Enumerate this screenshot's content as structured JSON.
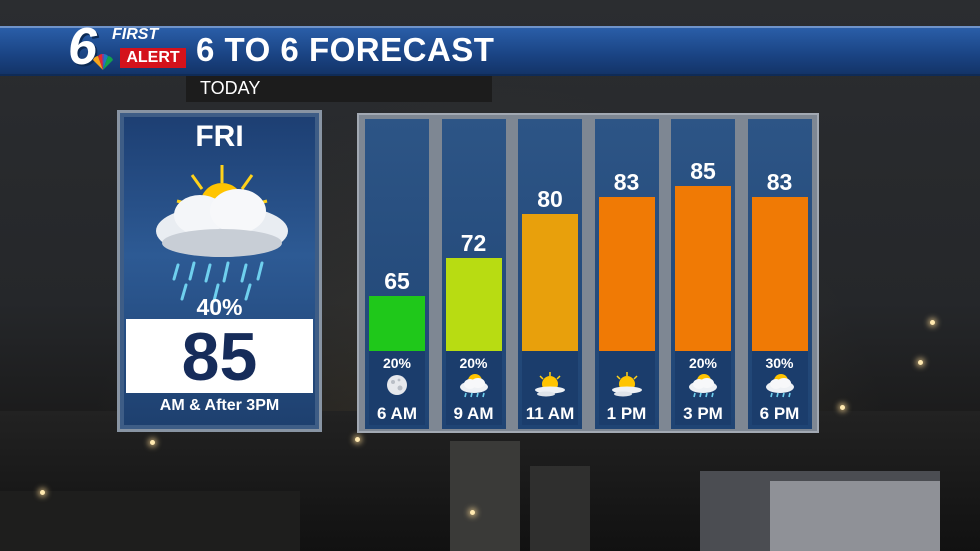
{
  "header": {
    "logo_number": "6",
    "logo_first": "FIRST",
    "logo_alert": "ALERT",
    "title": "6 TO 6 FORECAST",
    "subtitle": "TODAY"
  },
  "day": {
    "label": "FRI",
    "icon": "sun-cloud-rain-icon",
    "precip": "40%",
    "temp": "85",
    "note": "AM & After 3PM"
  },
  "hourly": [
    {
      "time": "6 AM",
      "temp": "65",
      "value": 65,
      "precip": "20%",
      "icon": "moon-icon",
      "color": "#1fc81a"
    },
    {
      "time": "9 AM",
      "temp": "72",
      "value": 72,
      "precip": "20%",
      "icon": "sun-cloud-rain-icon",
      "color": "#b8dc12"
    },
    {
      "time": "11 AM",
      "temp": "80",
      "value": 80,
      "precip": "",
      "icon": "partly-sunny-icon",
      "color": "#e8a00c"
    },
    {
      "time": "1 PM",
      "temp": "83",
      "value": 83,
      "precip": "",
      "icon": "partly-sunny-icon",
      "color": "#f07a05"
    },
    {
      "time": "3 PM",
      "temp": "85",
      "value": 85,
      "precip": "20%",
      "icon": "sun-cloud-rain-icon",
      "color": "#f07a05"
    },
    {
      "time": "6 PM",
      "temp": "83",
      "value": 83,
      "precip": "30%",
      "icon": "sun-cloud-rain-icon",
      "color": "#f07a05"
    }
  ],
  "colors": {
    "header_blue": "#1b4586",
    "alert_red": "#d4121b",
    "temp_navy": "#162c5a"
  }
}
